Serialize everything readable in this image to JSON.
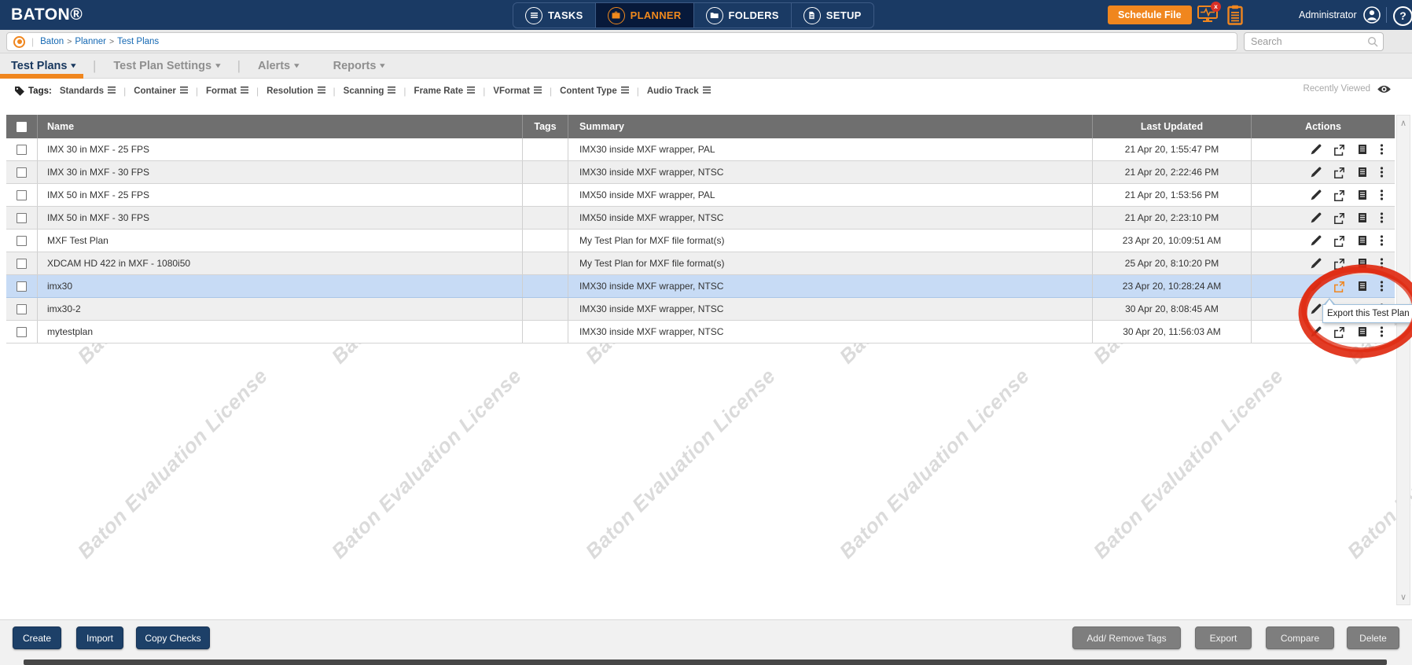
{
  "brand": {
    "logo": "BATON®"
  },
  "topnav": {
    "items": [
      {
        "label": "TASKS",
        "icon": "tasks-icon",
        "active": false
      },
      {
        "label": "PLANNER",
        "icon": "planner-icon",
        "active": true
      },
      {
        "label": "FOLDERS",
        "icon": "folders-icon",
        "active": false
      },
      {
        "label": "SETUP",
        "icon": "setup-icon",
        "active": false
      }
    ],
    "schedule_button": "Schedule File",
    "monitor_badge": "x",
    "user": "Administrator",
    "help": "?"
  },
  "breadcrumb": {
    "separator": ">",
    "items": [
      "Baton",
      "Planner",
      "Test Plans"
    ]
  },
  "search": {
    "placeholder": "Search"
  },
  "tabs": [
    {
      "label": "Test Plans",
      "active": true,
      "divider_after": true
    },
    {
      "label": "Test Plan Settings",
      "active": false,
      "divider_after": true
    },
    {
      "label": "Alerts",
      "active": false,
      "divider_after": false
    },
    {
      "label": "Reports",
      "active": false,
      "divider_after": false
    }
  ],
  "tags_bar": {
    "label": "Tags:",
    "items": [
      "Standards",
      "Container",
      "Format",
      "Resolution",
      "Scanning",
      "Frame Rate",
      "VFormat",
      "Content Type",
      "Audio Track"
    ],
    "recently_viewed": "Recently Viewed"
  },
  "table": {
    "columns": [
      "Name",
      "Tags",
      "Summary",
      "Last Updated",
      "Actions"
    ],
    "action_icons": [
      "edit-icon",
      "export-icon",
      "document-icon",
      "more-icon"
    ],
    "rows": [
      {
        "name": "IMX 30 in MXF - 25 FPS",
        "tags": "",
        "summary": "IMX30 inside MXF wrapper, PAL",
        "last_updated": "21 Apr 20, 1:55:47 PM",
        "selected": false,
        "export_hover": false
      },
      {
        "name": "IMX 30 in MXF - 30 FPS",
        "tags": "",
        "summary": "IMX30 inside MXF wrapper, NTSC",
        "last_updated": "21 Apr 20, 2:22:46 PM",
        "selected": false,
        "export_hover": false
      },
      {
        "name": "IMX 50 in MXF - 25 FPS",
        "tags": "",
        "summary": "IMX50 inside MXF wrapper, PAL",
        "last_updated": "21 Apr 20, 1:53:56 PM",
        "selected": false,
        "export_hover": false
      },
      {
        "name": "IMX 50 in MXF - 30 FPS",
        "tags": "",
        "summary": "IMX50 inside MXF wrapper, NTSC",
        "last_updated": "21 Apr 20, 2:23:10 PM",
        "selected": false,
        "export_hover": false
      },
      {
        "name": "MXF Test Plan",
        "tags": "",
        "summary": "My Test Plan for MXF file format(s)",
        "last_updated": "23 Apr 20, 10:09:51 AM",
        "selected": false,
        "export_hover": false
      },
      {
        "name": "XDCAM HD 422  in MXF - 1080i50",
        "tags": "",
        "summary": "My Test Plan for MXF file format(s)",
        "last_updated": "25 Apr 20, 8:10:20 PM",
        "selected": false,
        "export_hover": false
      },
      {
        "name": "imx30",
        "tags": "",
        "summary": "IMX30 inside MXF wrapper, NTSC",
        "last_updated": "23 Apr 20, 10:28:24 AM",
        "selected": true,
        "export_hover": true
      },
      {
        "name": "imx30-2",
        "tags": "",
        "summary": "IMX30 inside MXF wrapper, NTSC",
        "last_updated": "30 Apr 20, 8:08:45 AM",
        "selected": false,
        "export_hover": false
      },
      {
        "name": "mytestplan",
        "tags": "",
        "summary": "IMX30 inside MXF wrapper, NTSC",
        "last_updated": "30 Apr 20, 11:56:03 AM",
        "selected": false,
        "export_hover": false
      }
    ]
  },
  "tooltip": {
    "text": "Export this Test Plan"
  },
  "watermark": {
    "text": "Baton Evaluation License"
  },
  "footer": {
    "left_buttons": [
      "Create",
      "Import",
      "Copy Checks"
    ],
    "right_buttons": [
      "Add/ Remove Tags",
      "Export",
      "Compare",
      "Delete"
    ]
  },
  "colors": {
    "accent_orange": "#F0861E",
    "navy": "#1A3A64",
    "selected_row": "#C7DBF5",
    "annotation_red": "#DF2B12"
  }
}
